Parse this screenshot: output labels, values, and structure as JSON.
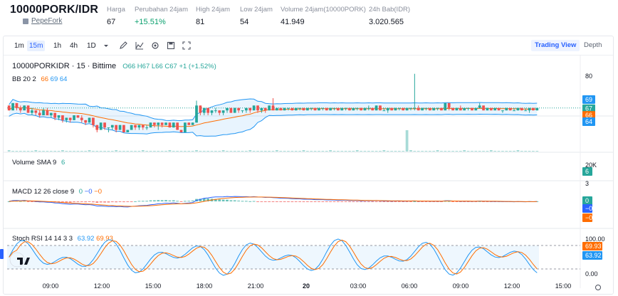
{
  "header": {
    "title": "10000PORK/IDR",
    "subtitle": "PepeFork",
    "stats": [
      {
        "label": "Harga",
        "value": "67",
        "up": false
      },
      {
        "label": "Perubahan 24jam",
        "value": "+15.51%",
        "up": true
      },
      {
        "label": "High 24jam",
        "value": "81",
        "up": false
      },
      {
        "label": "Low 24jam",
        "value": "54",
        "up": false
      },
      {
        "label": "Volume 24jam(10000PORK)",
        "value": "41.949",
        "up": false
      },
      {
        "label": "24h Bab(IDR)",
        "value": "3.020.565",
        "up": false
      }
    ]
  },
  "toolbar": {
    "timeframes": [
      "1m",
      "15m",
      "1h",
      "4h",
      "1D"
    ],
    "active_timeframe": "15m",
    "views": [
      "Trading View",
      "Depth"
    ],
    "active_view": "Trading View"
  },
  "colors": {
    "up": "#26a69a",
    "down": "#ef5350",
    "bb_upper": "#2196f3",
    "bb_basis": "#ff6d00",
    "bb_fill": "#2196f3",
    "macd": "#2962ff",
    "signal": "#ff6d00",
    "stoch_k": "#2196f3",
    "stoch_d": "#ff6d00"
  },
  "legend": {
    "main": {
      "symbol": "10000PORKIDR · 15 · Bittime",
      "o": "O66",
      "h": "H67",
      "l": "L66",
      "c": "C67",
      "chg": "+1 (+1.52%)"
    },
    "bb": {
      "name": "BB 20 2",
      "v1": "66",
      "v2": "69",
      "v3": "64"
    },
    "volume": {
      "name": "Volume SMA 9",
      "v": "6"
    },
    "macd": {
      "name": "MACD 12 26 close 9",
      "v1": "0",
      "v2": "−0",
      "v3": "−0"
    },
    "stoch": {
      "name": "Stoch RSI 14 14 3 3",
      "v1": "63.92",
      "v2": "69.93"
    }
  },
  "axis": {
    "price_ticks": [
      "80"
    ],
    "price_labels": [
      {
        "text": "69",
        "color": "#2196f3"
      },
      {
        "text": "67",
        "color": "#26a69a"
      },
      {
        "text": "66",
        "color": "#ff6d00"
      },
      {
        "text": "64",
        "color": "#2196f3"
      }
    ],
    "volume_tick": "20K",
    "volume_label": "6",
    "macd_tick": "3",
    "macd_labels": [
      "0",
      "−0",
      "−0"
    ],
    "stoch_ticks": [
      "100.00",
      "0.00"
    ],
    "stoch_labels": [
      "69.93",
      "63.92"
    ],
    "time_labels": [
      "09:00",
      "12:00",
      "15:00",
      "18:00",
      "21:00",
      "20",
      "03:00",
      "06:00",
      "09:00",
      "12:00",
      "15:00"
    ]
  },
  "chart_data": {
    "type": "candlestick",
    "price_range": [
      50,
      85
    ],
    "current_price": 67,
    "candles": [
      [
        68,
        68,
        66,
        66
      ],
      [
        66,
        69,
        66,
        69
      ],
      [
        69,
        69,
        66,
        67
      ],
      [
        67,
        68,
        65,
        66
      ],
      [
        66,
        68,
        66,
        68
      ],
      [
        68,
        68,
        65,
        65
      ],
      [
        65,
        67,
        64,
        66
      ],
      [
        66,
        66,
        64,
        65
      ],
      [
        65,
        66,
        63,
        64
      ],
      [
        64,
        67,
        64,
        66
      ],
      [
        66,
        67,
        64,
        64
      ],
      [
        64,
        65,
        63,
        65
      ],
      [
        65,
        65,
        62,
        63
      ],
      [
        63,
        64,
        62,
        64
      ],
      [
        64,
        64,
        61,
        62
      ],
      [
        62,
        63,
        61,
        63
      ],
      [
        63,
        63,
        61,
        62
      ],
      [
        62,
        64,
        62,
        64
      ],
      [
        64,
        64,
        63,
        63
      ],
      [
        63,
        64,
        61,
        62
      ],
      [
        62,
        62,
        60,
        61
      ],
      [
        61,
        63,
        61,
        63
      ],
      [
        63,
        63,
        59,
        60
      ],
      [
        60,
        60,
        57,
        58
      ],
      [
        58,
        61,
        58,
        61
      ],
      [
        61,
        61,
        58,
        59
      ],
      [
        59,
        59,
        57,
        59
      ],
      [
        59,
        60,
        58,
        60
      ],
      [
        60,
        60,
        57,
        58
      ],
      [
        58,
        60,
        58,
        60
      ],
      [
        60,
        60,
        57,
        57
      ],
      [
        57,
        58,
        57,
        58
      ],
      [
        58,
        60,
        58,
        60
      ],
      [
        60,
        60,
        58,
        59
      ],
      [
        59,
        60,
        58,
        60
      ],
      [
        60,
        60,
        58,
        59
      ],
      [
        59,
        60,
        58,
        59
      ],
      [
        59,
        61,
        59,
        61
      ],
      [
        61,
        61,
        59,
        60
      ],
      [
        60,
        61,
        58,
        61
      ],
      [
        61,
        61,
        59,
        60
      ],
      [
        60,
        61,
        60,
        61
      ],
      [
        61,
        61,
        59,
        59
      ],
      [
        59,
        61,
        59,
        61
      ],
      [
        61,
        61,
        58,
        58
      ],
      [
        58,
        58,
        57,
        57
      ],
      [
        57,
        61,
        57,
        61
      ],
      [
        61,
        61,
        60,
        60
      ],
      [
        60,
        61,
        60,
        61
      ],
      [
        61,
        70,
        61,
        68
      ],
      [
        68,
        68,
        64,
        65
      ],
      [
        65,
        67,
        64,
        67
      ],
      [
        67,
        67,
        64,
        65
      ],
      [
        65,
        66,
        64,
        66
      ],
      [
        66,
        67,
        65,
        66
      ],
      [
        66,
        66,
        64,
        65
      ],
      [
        65,
        66,
        64,
        66
      ],
      [
        66,
        67,
        65,
        67
      ],
      [
        67,
        67,
        65,
        65
      ],
      [
        65,
        67,
        65,
        67
      ],
      [
        67,
        67,
        65,
        66
      ],
      [
        66,
        66,
        65,
        66
      ],
      [
        66,
        67,
        65,
        67
      ],
      [
        67,
        67,
        65,
        66
      ],
      [
        66,
        68,
        66,
        68
      ],
      [
        68,
        68,
        65,
        66
      ],
      [
        66,
        67,
        65,
        67
      ],
      [
        67,
        67,
        65,
        66
      ],
      [
        66,
        68,
        66,
        68
      ],
      [
        68,
        71,
        66,
        66
      ],
      [
        66,
        67,
        66,
        67
      ],
      [
        67,
        67,
        66,
        66
      ],
      [
        66,
        67,
        66,
        67
      ],
      [
        67,
        67,
        66,
        67
      ],
      [
        67,
        67,
        66,
        66
      ],
      [
        66,
        67,
        66,
        67
      ],
      [
        67,
        67,
        66,
        67
      ],
      [
        67,
        67,
        66,
        66
      ],
      [
        66,
        67,
        66,
        67
      ],
      [
        67,
        67,
        66,
        67
      ],
      [
        67,
        67,
        66,
        66
      ],
      [
        66,
        67,
        66,
        67
      ],
      [
        67,
        67,
        66,
        67
      ],
      [
        67,
        67,
        66,
        66
      ],
      [
        66,
        67,
        66,
        67
      ],
      [
        67,
        67,
        66,
        67
      ],
      [
        67,
        67,
        66,
        66
      ],
      [
        66,
        67,
        66,
        67
      ],
      [
        67,
        67,
        66,
        67
      ],
      [
        67,
        67,
        66,
        66
      ],
      [
        66,
        67,
        66,
        67
      ],
      [
        67,
        67,
        66,
        67
      ],
      [
        67,
        67,
        66,
        66
      ],
      [
        66,
        67,
        66,
        67
      ],
      [
        67,
        68,
        66,
        67
      ],
      [
        67,
        67,
        66,
        66
      ],
      [
        66,
        68,
        66,
        68
      ],
      [
        68,
        68,
        66,
        66
      ],
      [
        66,
        67,
        66,
        66
      ],
      [
        66,
        67,
        65,
        67
      ],
      [
        67,
        67,
        66,
        66
      ],
      [
        66,
        67,
        66,
        67
      ],
      [
        67,
        67,
        66,
        67
      ],
      [
        67,
        67,
        66,
        66
      ],
      [
        66,
        67,
        66,
        67
      ],
      [
        67,
        67,
        66,
        67
      ],
      [
        67,
        81,
        66,
        67
      ],
      [
        67,
        68,
        66,
        66
      ],
      [
        66,
        67,
        66,
        67
      ],
      [
        67,
        67,
        66,
        67
      ],
      [
        67,
        67,
        66,
        66
      ],
      [
        66,
        67,
        66,
        67
      ],
      [
        67,
        67,
        66,
        67
      ],
      [
        67,
        67,
        66,
        66
      ],
      [
        66,
        69,
        66,
        69
      ],
      [
        69,
        69,
        66,
        67
      ],
      [
        67,
        67,
        66,
        66
      ],
      [
        66,
        67,
        66,
        67
      ],
      [
        67,
        68,
        66,
        66
      ],
      [
        66,
        67,
        66,
        67
      ],
      [
        67,
        67,
        66,
        67
      ],
      [
        67,
        67,
        66,
        66
      ],
      [
        66,
        67,
        66,
        67
      ],
      [
        67,
        69,
        67,
        68
      ],
      [
        68,
        68,
        66,
        66
      ],
      [
        66,
        67,
        66,
        67
      ],
      [
        67,
        67,
        66,
        66
      ],
      [
        66,
        67,
        66,
        67
      ],
      [
        67,
        67,
        66,
        66
      ],
      [
        66,
        66,
        65,
        66
      ],
      [
        66,
        67,
        66,
        67
      ],
      [
        67,
        67,
        66,
        66
      ],
      [
        66,
        67,
        66,
        66
      ],
      [
        66,
        67,
        66,
        67
      ],
      [
        67,
        67,
        66,
        66
      ],
      [
        66,
        67,
        66,
        66
      ],
      [
        66,
        67,
        65,
        67
      ],
      [
        67,
        67,
        66,
        66
      ],
      [
        66,
        67,
        66,
        67
      ]
    ]
  }
}
